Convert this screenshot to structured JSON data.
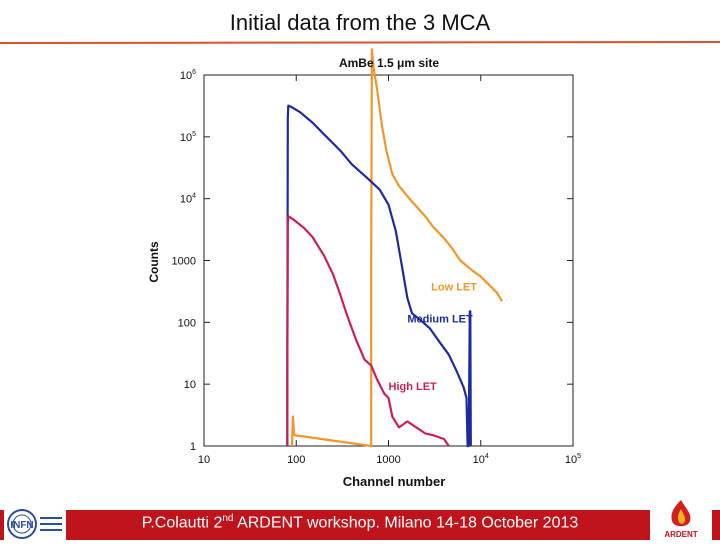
{
  "slide": {
    "title": "Initial data from the 3 MCA",
    "footer": "P.Colautti 2nd ARDENT workshop. Milano 14-18 October 2013",
    "footer_prefix": "P.Colautti 2",
    "footer_sup": "nd",
    "footer_suffix": " ARDENT workshop. Milano 14-18 October 2013",
    "logo_left_text": "INFN",
    "logo_right_text": "ARDENT"
  },
  "chart_data": {
    "type": "line",
    "title": "AmBe  1.5 μm site",
    "xlabel": "Channel number",
    "ylabel": "Counts",
    "xscale": "log",
    "yscale": "log",
    "xlim": [
      10,
      100000
    ],
    "ylim": [
      1,
      1000000
    ],
    "x_ticks": [
      {
        "value": 10,
        "label": "10",
        "sup": ""
      },
      {
        "value": 100,
        "label": "100",
        "sup": ""
      },
      {
        "value": 1000,
        "label": "1000",
        "sup": ""
      },
      {
        "value": 10000,
        "label": "10",
        "sup": "4"
      },
      {
        "value": 100000,
        "label": "10",
        "sup": "5"
      }
    ],
    "y_ticks": [
      {
        "value": 1,
        "label": "1",
        "sup": ""
      },
      {
        "value": 10,
        "label": "10",
        "sup": ""
      },
      {
        "value": 100,
        "label": "100",
        "sup": ""
      },
      {
        "value": 1000,
        "label": "1000",
        "sup": ""
      },
      {
        "value": 10000,
        "label": "10",
        "sup": "4"
      },
      {
        "value": 100000,
        "label": "10",
        "sup": "5"
      },
      {
        "value": 1000000,
        "label": "10",
        "sup": "6"
      }
    ],
    "grid": false,
    "series": [
      {
        "name": "Low LET",
        "color": "#f0962a",
        "label_at": [
          2900,
          330
        ],
        "points": [
          [
            90,
            1
          ],
          [
            92,
            3
          ],
          [
            95,
            1.5
          ],
          [
            650,
            1
          ],
          [
            650,
            1000
          ],
          [
            660,
            2600000
          ],
          [
            690,
            1300000
          ],
          [
            750,
            600000
          ],
          [
            850,
            150000
          ],
          [
            950,
            60000
          ],
          [
            1100,
            25000
          ],
          [
            1300,
            16000
          ],
          [
            1600,
            11000
          ],
          [
            2000,
            7500
          ],
          [
            2500,
            5200
          ],
          [
            3000,
            3600
          ],
          [
            4000,
            2300
          ],
          [
            5000,
            1500
          ],
          [
            6000,
            1000
          ],
          [
            8000,
            700
          ],
          [
            10000,
            550
          ],
          [
            12000,
            420
          ],
          [
            15000,
            300
          ],
          [
            17000,
            220
          ]
        ]
      },
      {
        "name": "Medium LET",
        "color": "#1c2b9e",
        "label_at": [
          1600,
          100
        ],
        "points": [
          [
            80,
            1
          ],
          [
            80,
            10
          ],
          [
            81,
            200000
          ],
          [
            82,
            320000
          ],
          [
            90,
            300000
          ],
          [
            110,
            250000
          ],
          [
            150,
            170000
          ],
          [
            200,
            110000
          ],
          [
            300,
            60000
          ],
          [
            400,
            36000
          ],
          [
            600,
            21000
          ],
          [
            800,
            14000
          ],
          [
            1000,
            8000
          ],
          [
            1200,
            3000
          ],
          [
            1400,
            800
          ],
          [
            1600,
            250
          ],
          [
            1800,
            140
          ],
          [
            2200,
            110
          ],
          [
            2800,
            80
          ],
          [
            3500,
            50
          ],
          [
            4500,
            30
          ],
          [
            5500,
            16
          ],
          [
            6500,
            9
          ],
          [
            7000,
            6
          ],
          [
            7200,
            1
          ],
          [
            7400,
            1
          ],
          [
            7600,
            150
          ],
          [
            7700,
            150
          ],
          [
            7800,
            1
          ]
        ]
      },
      {
        "name": "High LET",
        "color": "#cc1f5a",
        "label_at": [
          1000,
          8
        ],
        "points": [
          [
            80,
            1
          ],
          [
            80,
            10
          ],
          [
            81,
            3800
          ],
          [
            82,
            5200
          ],
          [
            95,
            4500
          ],
          [
            120,
            3400
          ],
          [
            150,
            2400
          ],
          [
            200,
            1200
          ],
          [
            250,
            600
          ],
          [
            300,
            280
          ],
          [
            350,
            140
          ],
          [
            400,
            80
          ],
          [
            450,
            50
          ],
          [
            500,
            35
          ],
          [
            550,
            25
          ],
          [
            650,
            20
          ],
          [
            750,
            12
          ],
          [
            900,
            7
          ],
          [
            1000,
            6
          ],
          [
            1100,
            3
          ],
          [
            1300,
            2
          ],
          [
            1600,
            2.5
          ],
          [
            2000,
            2
          ],
          [
            2500,
            1.6
          ],
          [
            3000,
            1.5
          ],
          [
            4000,
            1.3
          ],
          [
            4500,
            1
          ]
        ]
      }
    ]
  }
}
